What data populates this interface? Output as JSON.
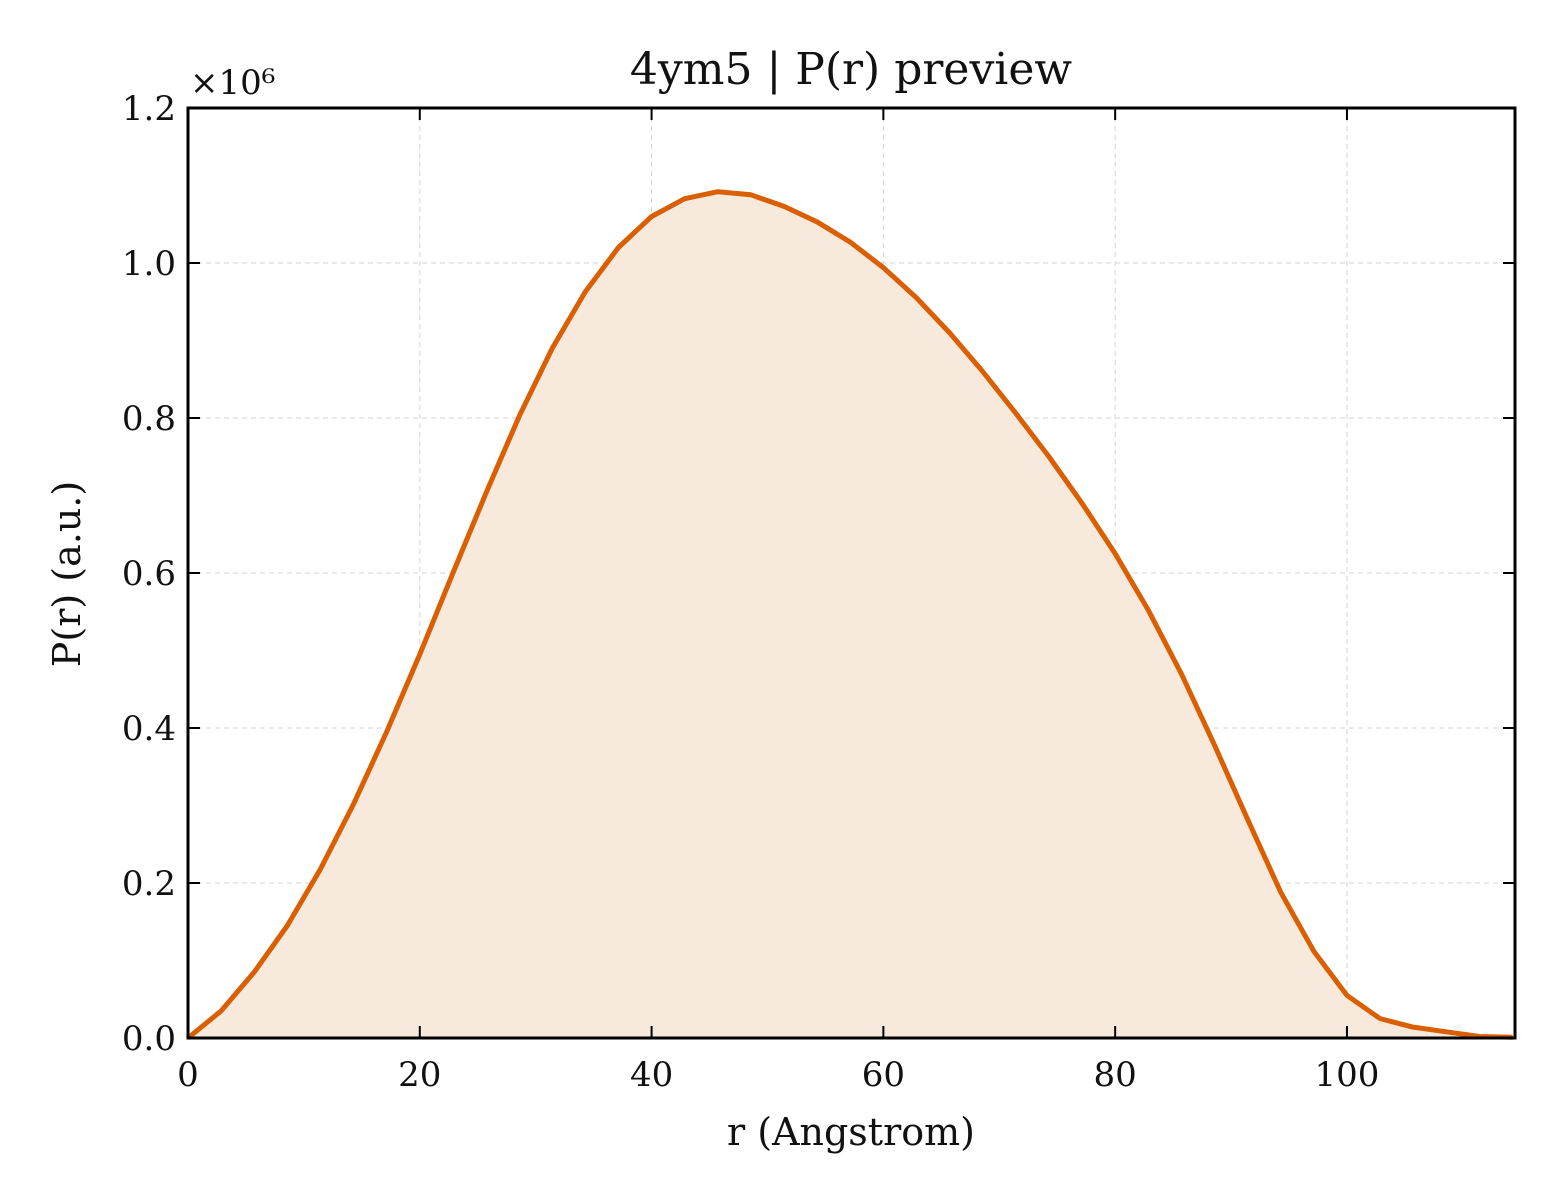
{
  "chart_data": {
    "type": "area",
    "title": "4ym5 | P(r) preview",
    "xlabel": "r (Angstrom)",
    "ylabel": "P(r) (a.u.)",
    "y_multiplier_label": "×10⁶",
    "xlim": [
      0,
      114.5
    ],
    "ylim": [
      0,
      1.2
    ],
    "x_ticks": [
      0,
      20,
      40,
      60,
      80,
      100
    ],
    "x_tick_labels": [
      "0",
      "20",
      "40",
      "60",
      "80",
      "100"
    ],
    "y_ticks": [
      0,
      0.2,
      0.4,
      0.6,
      0.8,
      1.0,
      1.2
    ],
    "y_tick_labels": [
      "0.0",
      "0.2",
      "0.4",
      "0.6",
      "0.8",
      "1.0",
      "1.2"
    ],
    "grid": true,
    "colors": {
      "line": "#d95f02",
      "fill": "#f8e9dd"
    },
    "series": [
      {
        "x": [
          0,
          2.86,
          5.71,
          8.57,
          11.43,
          14.29,
          17.14,
          20.0,
          22.86,
          25.71,
          28.57,
          31.43,
          34.29,
          37.14,
          40.0,
          42.86,
          45.71,
          48.57,
          51.43,
          54.29,
          57.14,
          60.0,
          62.86,
          65.71,
          68.57,
          71.43,
          74.29,
          77.14,
          80.0,
          82.86,
          85.71,
          88.57,
          91.43,
          94.29,
          97.14,
          100.0,
          102.86,
          105.71,
          108.57,
          111.43,
          114.29
        ],
        "y": [
          0.0,
          0.035,
          0.085,
          0.145,
          0.218,
          0.302,
          0.395,
          0.495,
          0.6,
          0.703,
          0.802,
          0.89,
          0.963,
          1.02,
          1.06,
          1.083,
          1.092,
          1.088,
          1.073,
          1.053,
          1.027,
          0.994,
          0.955,
          0.91,
          0.86,
          0.806,
          0.75,
          0.69,
          0.625,
          0.552,
          0.47,
          0.378,
          0.282,
          0.188,
          0.112,
          0.055,
          0.025,
          0.014,
          0.008,
          0.002,
          0.001
        ]
      }
    ]
  }
}
